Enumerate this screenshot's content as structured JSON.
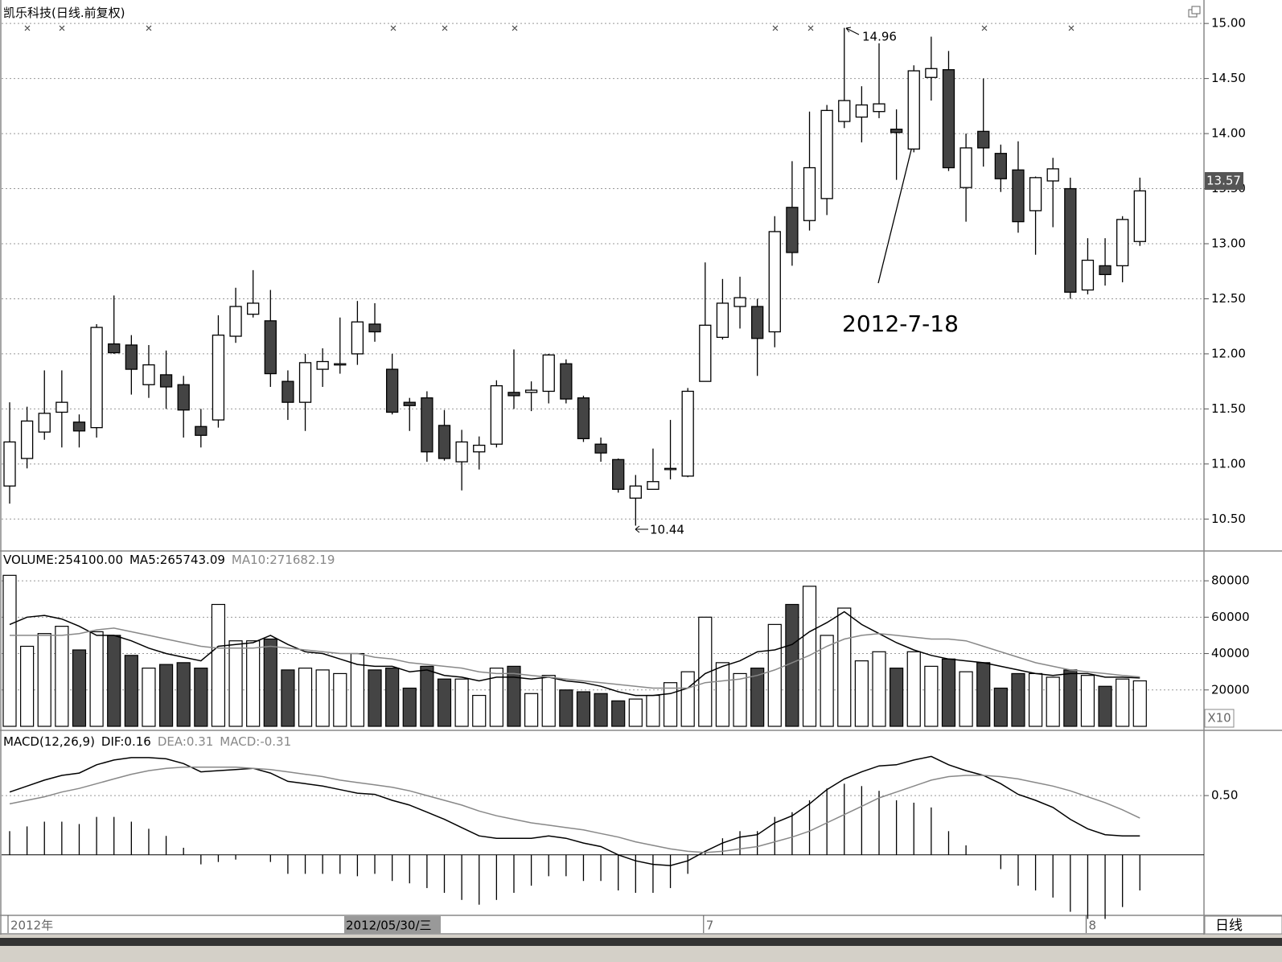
{
  "chart_data": {
    "type": "candlestick",
    "title": "凯乐科技(日线.前复权)",
    "categories": [
      "2012年",
      null,
      null,
      null,
      null,
      null,
      null,
      null,
      null,
      null,
      null,
      null,
      null,
      null,
      null,
      null,
      null,
      null,
      null,
      null,
      null,
      null,
      null,
      null,
      null,
      null,
      null,
      null,
      null,
      null,
      null,
      null,
      null,
      null,
      null,
      null,
      null,
      null,
      null,
      null,
      "7",
      null,
      null,
      null,
      null,
      null,
      null,
      null,
      null,
      null,
      null,
      null,
      null,
      null,
      null,
      null,
      null,
      null,
      null,
      null,
      null,
      null,
      "8",
      null,
      null,
      null
    ],
    "cursor_label": "2012/05/30/三",
    "period_label": "日线",
    "ylim": [
      10.21,
      15.14
    ],
    "yticks": [
      {
        "value": 10.5,
        "label": "10.50"
      },
      {
        "value": 11,
        "label": "11.00"
      },
      {
        "value": 11.5,
        "label": "11.50"
      },
      {
        "value": 12,
        "label": "12.00"
      },
      {
        "value": 12.5,
        "label": "12.50"
      },
      {
        "value": 13,
        "label": "13.00"
      },
      {
        "value": 13.5,
        "label": "13.50"
      },
      {
        "value": 14,
        "label": "14.00"
      },
      {
        "value": 14.5,
        "label": "14.50"
      },
      {
        "value": 15,
        "label": "15.00"
      }
    ],
    "grid": true,
    "up_color": "#ffffff",
    "down_color": "#444444",
    "open": [
      10.8,
      11.05,
      11.29,
      11.47,
      11.38,
      11.33,
      12.09,
      12.08,
      11.72,
      11.81,
      11.72,
      11.34,
      11.4,
      12.16,
      12.36,
      12.3,
      11.75,
      11.56,
      11.86,
      11.91,
      12.0,
      12.27,
      11.86,
      11.56,
      11.6,
      11.35,
      11.02,
      11.11,
      11.18,
      11.65,
      11.65,
      11.66,
      11.91,
      11.6,
      11.18,
      11.04,
      10.69,
      10.77,
      10.96,
      10.89,
      11.75,
      12.15,
      12.43,
      12.43,
      12.2,
      13.33,
      13.21,
      13.41,
      14.11,
      14.15,
      14.2,
      14.04,
      13.86,
      14.51,
      14.58,
      13.51,
      14.02,
      13.82,
      13.67,
      13.3,
      13.57,
      13.5,
      12.58,
      12.8,
      12.8,
      13.02
    ],
    "high": [
      11.56,
      11.52,
      11.85,
      11.85,
      11.45,
      12.27,
      12.53,
      12.17,
      12.08,
      12.03,
      11.8,
      11.5,
      12.35,
      12.6,
      12.76,
      12.58,
      11.85,
      12.0,
      12.05,
      12.33,
      12.48,
      12.46,
      12.0,
      11.6,
      11.66,
      11.49,
      11.31,
      11.25,
      11.76,
      12.04,
      11.75,
      12.0,
      11.95,
      11.62,
      11.24,
      11.05,
      10.9,
      11.14,
      11.4,
      11.69,
      12.83,
      12.68,
      12.7,
      12.5,
      13.25,
      13.75,
      14.2,
      14.26,
      14.96,
      14.43,
      14.82,
      14.22,
      14.62,
      14.88,
      14.75,
      14.0,
      14.5,
      13.9,
      13.93,
      13.61,
      13.78,
      13.6,
      13.05,
      13.05,
      13.25,
      13.6
    ],
    "low": [
      10.64,
      10.96,
      11.22,
      11.15,
      11.15,
      11.24,
      12.0,
      11.63,
      11.6,
      11.5,
      11.24,
      11.15,
      11.33,
      12.1,
      12.33,
      11.7,
      11.4,
      11.3,
      11.7,
      11.82,
      11.9,
      12.11,
      11.45,
      11.3,
      11.02,
      11.03,
      10.76,
      10.95,
      11.15,
      11.5,
      11.48,
      11.55,
      11.55,
      11.2,
      11.02,
      10.74,
      10.44,
      10.78,
      10.86,
      10.88,
      11.75,
      12.13,
      12.23,
      11.8,
      12.06,
      12.8,
      13.12,
      13.26,
      14.05,
      13.92,
      14.14,
      13.58,
      13.83,
      14.3,
      13.66,
      13.2,
      13.7,
      13.47,
      13.1,
      12.9,
      13.15,
      12.5,
      12.54,
      12.62,
      12.65,
      12.98
    ],
    "close": [
      11.2,
      11.39,
      11.46,
      11.56,
      11.3,
      12.24,
      12.01,
      11.86,
      11.9,
      11.7,
      11.49,
      11.26,
      12.17,
      12.43,
      12.46,
      11.82,
      11.56,
      11.92,
      11.93,
      11.91,
      12.29,
      12.2,
      11.47,
      11.53,
      11.11,
      11.05,
      11.2,
      11.17,
      11.71,
      11.62,
      11.67,
      11.99,
      11.59,
      11.23,
      11.1,
      10.77,
      10.8,
      10.84,
      10.96,
      11.66,
      12.26,
      12.46,
      12.51,
      12.14,
      13.11,
      12.92,
      13.69,
      14.21,
      14.3,
      14.26,
      14.27,
      14.01,
      14.57,
      14.59,
      13.69,
      13.87,
      13.87,
      13.59,
      13.2,
      13.6,
      13.68,
      12.56,
      12.85,
      12.72,
      13.22,
      13.48
    ],
    "last_price": {
      "value": 13.57,
      "label": "13.57"
    },
    "annotations": [
      {
        "text": "14.96"
      },
      {
        "text": "10.44"
      },
      {
        "text": "2012-7-18"
      }
    ],
    "volume": {
      "header": [
        {
          "text": "VOLUME:254100.00",
          "color": "#000000"
        },
        {
          "text": "MA5:265743.09",
          "color": "#000000"
        },
        {
          "text": "MA10:271682.19",
          "color": "#888888"
        }
      ],
      "unit_label": "X10",
      "ylim": [
        0,
        96400
      ],
      "yticks": [
        20000,
        40000,
        60000,
        80000
      ],
      "values": [
        83000,
        44000,
        51000,
        55000,
        42000,
        52000,
        50000,
        39000,
        32000,
        34000,
        35000,
        32000,
        67000,
        47000,
        47000,
        48000,
        31000,
        32000,
        31000,
        29000,
        40000,
        31000,
        32000,
        21000,
        33000,
        26000,
        26000,
        17000,
        32000,
        33000,
        18000,
        28000,
        20000,
        19000,
        18000,
        14000,
        15000,
        17000,
        24000,
        30000,
        60000,
        35000,
        29000,
        32000,
        56000,
        67000,
        77000,
        50000,
        65000,
        36000,
        41000,
        32000,
        41000,
        33000,
        37000,
        30000,
        35000,
        21000,
        29000,
        29000,
        27000,
        31000,
        28000,
        22000,
        26000,
        25000
      ],
      "series": [
        {
          "name": "MA5",
          "color": "#000000",
          "values": [
            56000,
            60000,
            61000,
            59000,
            55000,
            50000,
            50000,
            47000,
            43000,
            40000,
            38000,
            36000,
            44000,
            45000,
            46000,
            50000,
            45000,
            41000,
            40000,
            37000,
            34000,
            33000,
            33000,
            30000,
            31000,
            28000,
            27000,
            25000,
            27000,
            27000,
            26000,
            27000,
            25000,
            24000,
            22000,
            19000,
            17000,
            17000,
            18000,
            21000,
            29000,
            33000,
            36000,
            41000,
            42000,
            45000,
            52000,
            57000,
            63000,
            56000,
            51000,
            46000,
            42000,
            39000,
            37000,
            36000,
            35000,
            33000,
            31000,
            29000,
            28000,
            29000,
            29000,
            27000,
            27000,
            26574
          ]
        },
        {
          "name": "MA10",
          "color": "#888888",
          "values": [
            50000,
            50000,
            50000,
            50000,
            51000,
            53000,
            54000,
            52000,
            50000,
            48000,
            46000,
            44000,
            43000,
            43000,
            43000,
            44000,
            43000,
            42000,
            41000,
            40000,
            40000,
            38000,
            37000,
            35000,
            34000,
            33000,
            32000,
            30000,
            29000,
            29000,
            28000,
            27000,
            26000,
            25000,
            24000,
            23000,
            22000,
            21000,
            21000,
            21000,
            24000,
            25000,
            26000,
            28000,
            31000,
            35000,
            39000,
            44000,
            48000,
            50000,
            51000,
            50000,
            49000,
            48000,
            48000,
            47000,
            44000,
            41000,
            38000,
            35000,
            33000,
            31000,
            30000,
            29000,
            28000,
            27168
          ]
        }
      ]
    },
    "macd": {
      "header": [
        {
          "text": "MACD(12,26,9)",
          "color": "#000000"
        },
        {
          "text": "DIF:0.16",
          "color": "#000000"
        },
        {
          "text": "DEA:0.31",
          "color": "#888888"
        },
        {
          "text": "MACD:-0.31",
          "color": "#888888"
        }
      ],
      "ylim": [
        -0.51,
        1.05
      ],
      "yticks": [
        {
          "value": 0.5,
          "label": "0.50"
        }
      ],
      "hist_color": "#000000",
      "hist": [
        0.2,
        0.24,
        0.28,
        0.28,
        0.26,
        0.32,
        0.32,
        0.28,
        0.22,
        0.16,
        0.06,
        -0.08,
        -0.06,
        -0.04,
        0,
        -0.06,
        -0.16,
        -0.16,
        -0.16,
        -0.16,
        -0.18,
        -0.16,
        -0.22,
        -0.24,
        -0.28,
        -0.32,
        -0.38,
        -0.42,
        -0.38,
        -0.32,
        -0.26,
        -0.18,
        -0.18,
        -0.22,
        -0.22,
        -0.3,
        -0.32,
        -0.32,
        -0.28,
        -0.16,
        0.02,
        0.14,
        0.2,
        0.2,
        0.32,
        0.36,
        0.46,
        0.56,
        0.6,
        0.58,
        0.54,
        0.46,
        0.44,
        0.4,
        0.2,
        0.08,
        0,
        -0.12,
        -0.26,
        -0.3,
        -0.36,
        -0.48,
        -0.54,
        -0.54,
        -0.44,
        -0.3
      ],
      "series": [
        {
          "name": "DIF",
          "color": "#000000",
          "values": [
            0.53,
            0.58,
            0.63,
            0.67,
            0.69,
            0.76,
            0.8,
            0.82,
            0.82,
            0.81,
            0.77,
            0.7,
            0.71,
            0.72,
            0.73,
            0.69,
            0.62,
            0.6,
            0.58,
            0.55,
            0.52,
            0.51,
            0.46,
            0.42,
            0.36,
            0.3,
            0.23,
            0.16,
            0.14,
            0.14,
            0.14,
            0.16,
            0.14,
            0.1,
            0.07,
            0.0,
            -0.05,
            -0.08,
            -0.09,
            -0.05,
            0.03,
            0.1,
            0.15,
            0.17,
            0.27,
            0.33,
            0.43,
            0.55,
            0.64,
            0.7,
            0.75,
            0.76,
            0.8,
            0.83,
            0.76,
            0.71,
            0.67,
            0.6,
            0.51,
            0.46,
            0.4,
            0.3,
            0.22,
            0.17,
            0.16,
            0.16
          ]
        },
        {
          "name": "DEA",
          "color": "#888888",
          "values": [
            0.43,
            0.46,
            0.49,
            0.53,
            0.56,
            0.6,
            0.64,
            0.68,
            0.71,
            0.73,
            0.74,
            0.74,
            0.74,
            0.74,
            0.73,
            0.72,
            0.7,
            0.68,
            0.66,
            0.63,
            0.61,
            0.59,
            0.57,
            0.54,
            0.5,
            0.46,
            0.42,
            0.37,
            0.33,
            0.3,
            0.27,
            0.25,
            0.23,
            0.21,
            0.18,
            0.15,
            0.11,
            0.08,
            0.05,
            0.03,
            0.02,
            0.03,
            0.05,
            0.07,
            0.11,
            0.15,
            0.2,
            0.27,
            0.34,
            0.41,
            0.48,
            0.53,
            0.58,
            0.63,
            0.66,
            0.67,
            0.67,
            0.66,
            0.64,
            0.61,
            0.58,
            0.54,
            0.49,
            0.44,
            0.38,
            0.31
          ]
        }
      ]
    }
  }
}
